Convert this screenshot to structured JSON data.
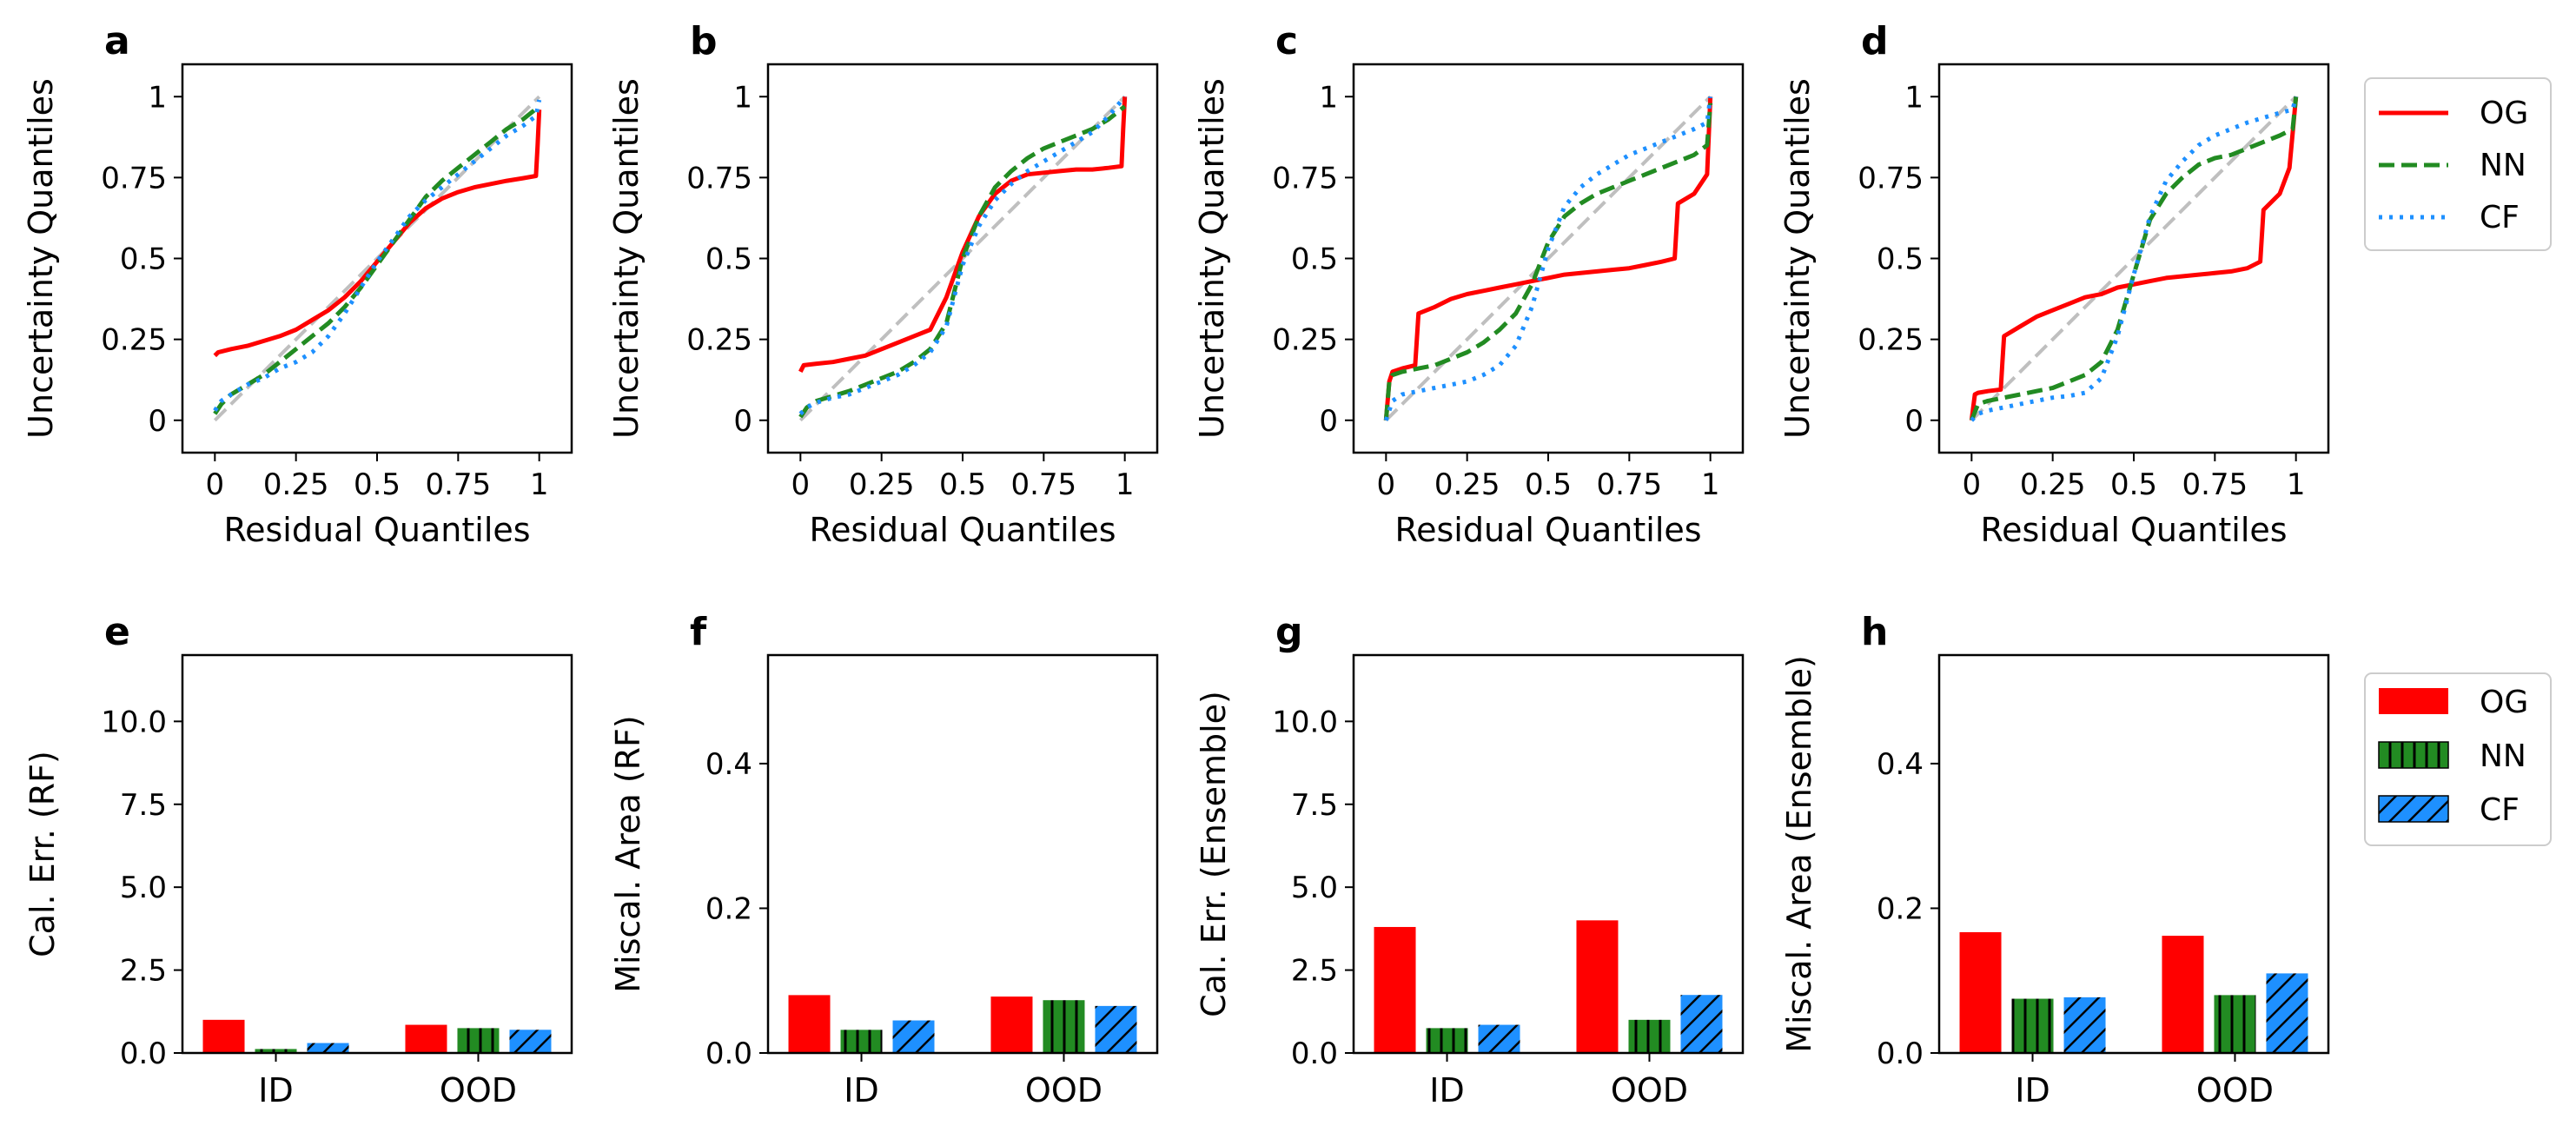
{
  "colors": {
    "OG": "#ff0000",
    "NN": "#228b22",
    "CF": "#1e90ff",
    "diagonal": "#bfbfbf"
  },
  "legend_top": {
    "entries": [
      "OG",
      "NN",
      "CF"
    ],
    "placement": "right of top row"
  },
  "legend_bottom": {
    "entries": [
      "OG",
      "NN",
      "CF"
    ],
    "placement": "right of bottom row"
  },
  "chart_data": [
    {
      "panel": "a",
      "type": "line",
      "xlabel": "Residual Quantiles",
      "ylabel": "Uncertainty Quantiles",
      "xlim": [
        -0.1,
        1.1
      ],
      "ylim": [
        -0.1,
        1.1
      ],
      "xticks": [
        0,
        0.25,
        0.5,
        0.75,
        1
      ],
      "xtick_labels": [
        "0",
        "0.25",
        "0.5",
        "0.75",
        "1"
      ],
      "yticks": [
        0,
        0.25,
        0.5,
        0.75,
        1
      ],
      "ytick_labels": [
        "0",
        "0.25",
        "0.5",
        "0.75",
        "1"
      ],
      "series": [
        {
          "name": "OG",
          "style": "solid",
          "x": [
            0,
            0.01,
            0.05,
            0.1,
            0.15,
            0.2,
            0.25,
            0.3,
            0.35,
            0.4,
            0.45,
            0.5,
            0.55,
            0.6,
            0.65,
            0.7,
            0.75,
            0.8,
            0.85,
            0.9,
            0.95,
            0.99,
            0.995,
            1.0
          ],
          "y": [
            0.2,
            0.21,
            0.22,
            0.23,
            0.245,
            0.26,
            0.28,
            0.31,
            0.34,
            0.38,
            0.43,
            0.49,
            0.55,
            0.61,
            0.655,
            0.685,
            0.705,
            0.72,
            0.73,
            0.74,
            0.748,
            0.755,
            0.85,
            0.96
          ]
        },
        {
          "name": "NN",
          "style": "dashed",
          "x": [
            0,
            0.02,
            0.05,
            0.1,
            0.15,
            0.2,
            0.25,
            0.3,
            0.35,
            0.4,
            0.45,
            0.5,
            0.55,
            0.6,
            0.65,
            0.7,
            0.75,
            0.8,
            0.85,
            0.9,
            0.95,
            1.0
          ],
          "y": [
            0.02,
            0.05,
            0.08,
            0.11,
            0.14,
            0.18,
            0.22,
            0.26,
            0.3,
            0.35,
            0.41,
            0.48,
            0.55,
            0.62,
            0.69,
            0.74,
            0.78,
            0.82,
            0.86,
            0.9,
            0.93,
            0.97
          ]
        },
        {
          "name": "CF",
          "style": "dotted",
          "x": [
            0,
            0.02,
            0.05,
            0.1,
            0.15,
            0.2,
            0.25,
            0.3,
            0.35,
            0.4,
            0.45,
            0.5,
            0.55,
            0.6,
            0.65,
            0.7,
            0.75,
            0.8,
            0.85,
            0.9,
            0.95,
            0.99,
            1.0
          ],
          "y": [
            0.03,
            0.06,
            0.08,
            0.11,
            0.13,
            0.16,
            0.18,
            0.21,
            0.26,
            0.33,
            0.41,
            0.49,
            0.56,
            0.63,
            0.68,
            0.72,
            0.76,
            0.8,
            0.84,
            0.88,
            0.91,
            0.94,
            0.99
          ]
        }
      ]
    },
    {
      "panel": "b",
      "type": "line",
      "xlabel": "Residual Quantiles",
      "ylabel": "Uncertainty Quantiles",
      "xlim": [
        -0.1,
        1.1
      ],
      "ylim": [
        -0.1,
        1.1
      ],
      "xticks": [
        0,
        0.25,
        0.5,
        0.75,
        1
      ],
      "xtick_labels": [
        "0",
        "0.25",
        "0.5",
        "0.75",
        "1"
      ],
      "yticks": [
        0,
        0.25,
        0.5,
        0.75,
        1
      ],
      "ytick_labels": [
        "0",
        "0.25",
        "0.5",
        "0.75",
        "1"
      ],
      "series": [
        {
          "name": "OG",
          "style": "solid",
          "x": [
            0,
            0.01,
            0.05,
            0.1,
            0.15,
            0.2,
            0.25,
            0.3,
            0.35,
            0.4,
            0.45,
            0.5,
            0.55,
            0.6,
            0.65,
            0.7,
            0.75,
            0.8,
            0.85,
            0.9,
            0.95,
            0.99,
            0.995,
            1.0
          ],
          "y": [
            0.15,
            0.17,
            0.175,
            0.18,
            0.19,
            0.2,
            0.22,
            0.24,
            0.26,
            0.28,
            0.38,
            0.52,
            0.63,
            0.7,
            0.74,
            0.76,
            0.765,
            0.77,
            0.775,
            0.775,
            0.78,
            0.785,
            0.9,
            1.0
          ]
        },
        {
          "name": "NN",
          "style": "dashed",
          "x": [
            0,
            0.02,
            0.05,
            0.1,
            0.15,
            0.2,
            0.25,
            0.3,
            0.35,
            0.4,
            0.45,
            0.5,
            0.55,
            0.6,
            0.65,
            0.7,
            0.75,
            0.8,
            0.85,
            0.9,
            0.95,
            1.0
          ],
          "y": [
            0.01,
            0.04,
            0.06,
            0.075,
            0.09,
            0.11,
            0.13,
            0.15,
            0.18,
            0.22,
            0.3,
            0.5,
            0.63,
            0.72,
            0.77,
            0.81,
            0.84,
            0.86,
            0.88,
            0.9,
            0.93,
            0.97
          ]
        },
        {
          "name": "CF",
          "style": "dotted",
          "x": [
            0,
            0.02,
            0.05,
            0.1,
            0.15,
            0.2,
            0.25,
            0.3,
            0.35,
            0.4,
            0.45,
            0.5,
            0.55,
            0.6,
            0.65,
            0.7,
            0.75,
            0.8,
            0.85,
            0.9,
            0.95,
            1.0
          ],
          "y": [
            0.02,
            0.04,
            0.055,
            0.07,
            0.08,
            0.1,
            0.12,
            0.14,
            0.17,
            0.21,
            0.29,
            0.48,
            0.6,
            0.68,
            0.73,
            0.77,
            0.8,
            0.83,
            0.86,
            0.89,
            0.94,
            1.0
          ]
        }
      ]
    },
    {
      "panel": "c",
      "type": "line",
      "xlabel": "Residual Quantiles",
      "ylabel": "Uncertainty Quantiles",
      "xlim": [
        -0.1,
        1.1
      ],
      "ylim": [
        -0.1,
        1.1
      ],
      "xticks": [
        0,
        0.25,
        0.5,
        0.75,
        1
      ],
      "xtick_labels": [
        "0",
        "0.25",
        "0.5",
        "0.75",
        "1"
      ],
      "yticks": [
        0,
        0.25,
        0.5,
        0.75,
        1
      ],
      "ytick_labels": [
        "0",
        "0.25",
        "0.5",
        "0.75",
        "1"
      ],
      "series": [
        {
          "name": "OG",
          "style": "solid",
          "x": [
            0,
            0.01,
            0.02,
            0.05,
            0.09,
            0.095,
            0.1,
            0.15,
            0.2,
            0.25,
            0.3,
            0.35,
            0.4,
            0.45,
            0.5,
            0.55,
            0.6,
            0.65,
            0.7,
            0.75,
            0.8,
            0.85,
            0.89,
            0.9,
            0.95,
            0.99,
            1.0
          ],
          "y": [
            0,
            0.12,
            0.15,
            0.16,
            0.17,
            0.25,
            0.33,
            0.35,
            0.375,
            0.39,
            0.4,
            0.41,
            0.42,
            0.43,
            0.44,
            0.45,
            0.455,
            0.46,
            0.465,
            0.47,
            0.48,
            0.49,
            0.5,
            0.67,
            0.7,
            0.76,
            1.0
          ]
        },
        {
          "name": "NN",
          "style": "dashed",
          "x": [
            0,
            0.01,
            0.02,
            0.05,
            0.1,
            0.15,
            0.2,
            0.25,
            0.3,
            0.35,
            0.4,
            0.45,
            0.5,
            0.55,
            0.6,
            0.65,
            0.7,
            0.75,
            0.8,
            0.85,
            0.9,
            0.95,
            0.99,
            1.0
          ],
          "y": [
            0,
            0.12,
            0.14,
            0.15,
            0.16,
            0.17,
            0.19,
            0.21,
            0.24,
            0.28,
            0.33,
            0.42,
            0.55,
            0.63,
            0.67,
            0.7,
            0.72,
            0.74,
            0.76,
            0.78,
            0.8,
            0.82,
            0.85,
            0.98
          ]
        },
        {
          "name": "CF",
          "style": "dotted",
          "x": [
            0,
            0.02,
            0.05,
            0.1,
            0.15,
            0.2,
            0.25,
            0.3,
            0.35,
            0.4,
            0.45,
            0.5,
            0.55,
            0.6,
            0.65,
            0.7,
            0.75,
            0.8,
            0.85,
            0.9,
            0.95,
            0.99,
            1.0
          ],
          "y": [
            0,
            0.06,
            0.08,
            0.09,
            0.1,
            0.11,
            0.12,
            0.14,
            0.17,
            0.23,
            0.35,
            0.53,
            0.66,
            0.72,
            0.76,
            0.79,
            0.82,
            0.84,
            0.86,
            0.88,
            0.9,
            0.92,
            1.0
          ]
        }
      ]
    },
    {
      "panel": "d",
      "type": "line",
      "xlabel": "Residual Quantiles",
      "ylabel": "Uncertainty Quantiles",
      "xlim": [
        -0.1,
        1.1
      ],
      "ylim": [
        -0.1,
        1.1
      ],
      "xticks": [
        0,
        0.25,
        0.5,
        0.75,
        1
      ],
      "xtick_labels": [
        "0",
        "0.25",
        "0.5",
        "0.75",
        "1"
      ],
      "yticks": [
        0,
        0.25,
        0.5,
        0.75,
        1
      ],
      "ytick_labels": [
        "0",
        "0.25",
        "0.5",
        "0.75",
        "1"
      ],
      "series": [
        {
          "name": "OG",
          "style": "solid",
          "x": [
            0,
            0.01,
            0.02,
            0.05,
            0.09,
            0.095,
            0.1,
            0.15,
            0.2,
            0.25,
            0.3,
            0.35,
            0.4,
            0.45,
            0.5,
            0.55,
            0.6,
            0.65,
            0.7,
            0.75,
            0.8,
            0.85,
            0.89,
            0.9,
            0.95,
            0.98,
            1.0
          ],
          "y": [
            0,
            0.08,
            0.085,
            0.09,
            0.095,
            0.18,
            0.26,
            0.29,
            0.32,
            0.34,
            0.36,
            0.38,
            0.39,
            0.41,
            0.42,
            0.43,
            0.44,
            0.445,
            0.45,
            0.455,
            0.46,
            0.47,
            0.49,
            0.65,
            0.7,
            0.78,
            1.0
          ]
        },
        {
          "name": "NN",
          "style": "dashed",
          "x": [
            0,
            0.02,
            0.05,
            0.1,
            0.15,
            0.2,
            0.25,
            0.3,
            0.35,
            0.4,
            0.45,
            0.5,
            0.55,
            0.6,
            0.65,
            0.7,
            0.75,
            0.8,
            0.85,
            0.9,
            0.95,
            0.99,
            1.0
          ],
          "y": [
            0,
            0.05,
            0.06,
            0.07,
            0.08,
            0.09,
            0.1,
            0.12,
            0.14,
            0.18,
            0.28,
            0.45,
            0.62,
            0.7,
            0.75,
            0.79,
            0.81,
            0.82,
            0.84,
            0.86,
            0.88,
            0.9,
            1.0
          ]
        },
        {
          "name": "CF",
          "style": "dotted",
          "x": [
            0,
            0.02,
            0.05,
            0.1,
            0.15,
            0.2,
            0.25,
            0.3,
            0.35,
            0.4,
            0.45,
            0.5,
            0.55,
            0.6,
            0.65,
            0.7,
            0.75,
            0.8,
            0.85,
            0.9,
            0.95,
            0.99,
            1.0
          ],
          "y": [
            0,
            0.02,
            0.03,
            0.04,
            0.05,
            0.06,
            0.07,
            0.075,
            0.085,
            0.13,
            0.26,
            0.45,
            0.63,
            0.74,
            0.8,
            0.85,
            0.88,
            0.9,
            0.92,
            0.935,
            0.95,
            0.96,
            1.0
          ]
        }
      ]
    },
    {
      "panel": "e",
      "type": "bar",
      "ylabel": "Cal. Err. (RF)",
      "categories": [
        "ID",
        "OOD"
      ],
      "ylim": [
        0,
        12
      ],
      "yticks": [
        0,
        2.5,
        5,
        7.5,
        10
      ],
      "ytick_labels": [
        "0.0",
        "2.5",
        "5.0",
        "7.5",
        "10.0"
      ],
      "series": [
        {
          "name": "OG",
          "values": [
            1.0,
            0.85
          ]
        },
        {
          "name": "NN",
          "values": [
            0.12,
            0.75
          ]
        },
        {
          "name": "CF",
          "values": [
            0.3,
            0.7
          ]
        }
      ]
    },
    {
      "panel": "f",
      "type": "bar",
      "ylabel": "Miscal. Area (RF)",
      "categories": [
        "ID",
        "OOD"
      ],
      "ylim": [
        0,
        0.55
      ],
      "yticks": [
        0,
        0.2,
        0.4
      ],
      "ytick_labels": [
        "0.0",
        "0.2",
        "0.4"
      ],
      "series": [
        {
          "name": "OG",
          "values": [
            0.08,
            0.078
          ]
        },
        {
          "name": "NN",
          "values": [
            0.032,
            0.073
          ]
        },
        {
          "name": "CF",
          "values": [
            0.045,
            0.065
          ]
        }
      ]
    },
    {
      "panel": "g",
      "type": "bar",
      "ylabel": "Cal. Err. (Ensemble)",
      "categories": [
        "ID",
        "OOD"
      ],
      "ylim": [
        0,
        12
      ],
      "yticks": [
        0,
        2.5,
        5,
        7.5,
        10
      ],
      "ytick_labels": [
        "0.0",
        "2.5",
        "5.0",
        "7.5",
        "10.0"
      ],
      "series": [
        {
          "name": "OG",
          "values": [
            3.8,
            4.0
          ]
        },
        {
          "name": "NN",
          "values": [
            0.75,
            1.0
          ]
        },
        {
          "name": "CF",
          "values": [
            0.85,
            1.75
          ]
        }
      ]
    },
    {
      "panel": "h",
      "type": "bar",
      "ylabel": "Miscal. Area (Ensemble)",
      "categories": [
        "ID",
        "OOD"
      ],
      "ylim": [
        0,
        0.55
      ],
      "yticks": [
        0,
        0.2,
        0.4
      ],
      "ytick_labels": [
        "0.0",
        "0.2",
        "0.4"
      ],
      "series": [
        {
          "name": "OG",
          "values": [
            0.167,
            0.162
          ]
        },
        {
          "name": "NN",
          "values": [
            0.075,
            0.08
          ]
        },
        {
          "name": "CF",
          "values": [
            0.077,
            0.11
          ]
        }
      ]
    }
  ]
}
